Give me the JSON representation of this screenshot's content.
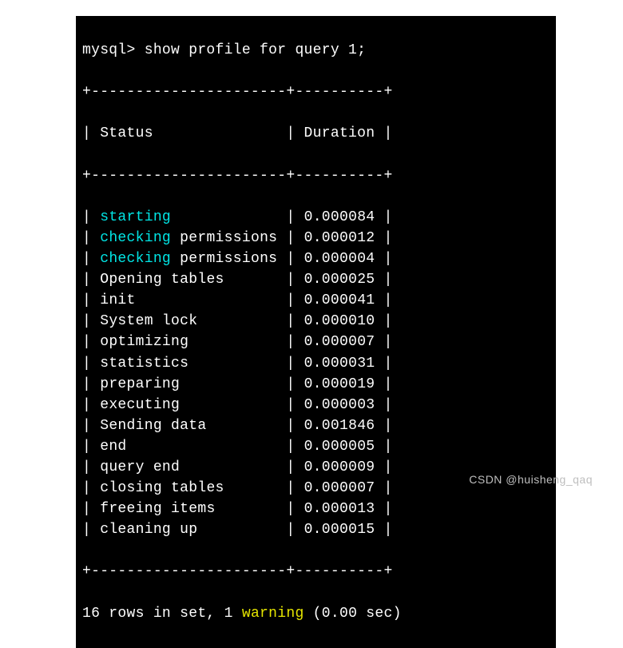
{
  "colors": {
    "background": "#000000",
    "text": "#ffffff",
    "highlight_cyan": "#00e5e5",
    "highlight_yellow": "#e5e500",
    "watermark": "#bfbfbf"
  },
  "prompt": "mysql> ",
  "command": "show profile for query 1;",
  "border_top": "+----------------------+----------+",
  "header_line": "| Status               | Duration |",
  "border_mid": "+----------------------+----------+",
  "border_bottom": "+----------------------+----------+",
  "col1_width": 20,
  "col2_width": 8,
  "rows": [
    {
      "status_hl": "starting",
      "status_rest": "",
      "duration": "0.000084"
    },
    {
      "status_hl": "checking",
      "status_rest": " permissions",
      "duration": "0.000012"
    },
    {
      "status_hl": "checking",
      "status_rest": " permissions",
      "duration": "0.000004"
    },
    {
      "status_hl": "",
      "status_rest": "Opening tables",
      "duration": "0.000025"
    },
    {
      "status_hl": "",
      "status_rest": "init",
      "duration": "0.000041"
    },
    {
      "status_hl": "",
      "status_rest": "System lock",
      "duration": "0.000010"
    },
    {
      "status_hl": "",
      "status_rest": "optimizing",
      "duration": "0.000007"
    },
    {
      "status_hl": "",
      "status_rest": "statistics",
      "duration": "0.000031"
    },
    {
      "status_hl": "",
      "status_rest": "preparing",
      "duration": "0.000019"
    },
    {
      "status_hl": "",
      "status_rest": "executing",
      "duration": "0.000003"
    },
    {
      "status_hl": "",
      "status_rest": "Sending data",
      "duration": "0.001846"
    },
    {
      "status_hl": "",
      "status_rest": "end",
      "duration": "0.000005"
    },
    {
      "status_hl": "",
      "status_rest": "query end",
      "duration": "0.000009"
    },
    {
      "status_hl": "",
      "status_rest": "closing tables",
      "duration": "0.000007"
    },
    {
      "status_hl": "",
      "status_rest": "freeing items",
      "duration": "0.000013"
    },
    {
      "status_hl": "",
      "status_rest": "cleaning up",
      "duration": "0.000015"
    }
  ],
  "summary_pre": "16 rows in set, 1 ",
  "summary_hl": "warning",
  "summary_post": " (0.00 sec)",
  "watermark": "CSDN @huisheng_qaq"
}
